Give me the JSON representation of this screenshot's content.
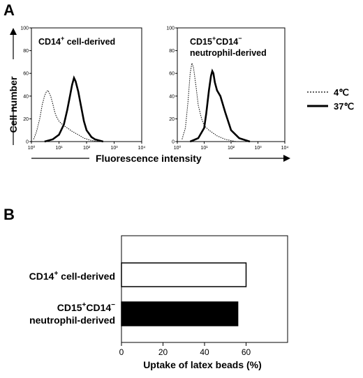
{
  "panel_a": {
    "letter": "A",
    "y_axis_title": "Cell number",
    "x_axis_title": "Fluorescence intensity",
    "legend": [
      {
        "label": "4℃",
        "style": "dotted"
      },
      {
        "label": "37℃",
        "style": "solid"
      }
    ]
  },
  "panel_b": {
    "letter": "B"
  },
  "chart_data": [
    {
      "type": "line",
      "panel": "A-left",
      "label_main": "CD14",
      "label_sup": "+",
      "label_rest": " cell-derived",
      "x_scale": "log",
      "xlim": [
        1,
        10000
      ],
      "ylim": [
        0,
        100
      ],
      "x_ticks": [
        "10⁰",
        "10¹",
        "10²",
        "10³",
        "10⁴"
      ],
      "y_ticks": [
        "0",
        "20",
        "40",
        "60",
        "80",
        "100"
      ],
      "series": [
        {
          "style": "dotted",
          "x": [
            1.2,
            1.5,
            2,
            2.5,
            3,
            3.5,
            4,
            5,
            6,
            7,
            8,
            10,
            12,
            15,
            20,
            30,
            50,
            80,
            150,
            300
          ],
          "y": [
            2,
            8,
            20,
            33,
            40,
            44,
            45,
            40,
            33,
            26,
            22,
            18,
            16,
            14,
            12,
            9,
            6,
            3,
            1,
            0
          ]
        },
        {
          "style": "solid",
          "x": [
            3,
            6,
            10,
            15,
            20,
            25,
            30,
            35,
            40,
            50,
            60,
            80,
            100,
            150,
            200,
            400
          ],
          "y": [
            0,
            2,
            6,
            15,
            28,
            40,
            50,
            56,
            53,
            44,
            34,
            18,
            10,
            4,
            2,
            0
          ]
        }
      ]
    },
    {
      "type": "line",
      "panel": "A-right",
      "label_main": "CD15",
      "label_sup": "+",
      "label_mid": "CD14",
      "label_sup2": "−",
      "label_line2": "neutrophil-derived",
      "x_scale": "log",
      "xlim": [
        1,
        10000
      ],
      "ylim": [
        0,
        100
      ],
      "x_ticks": [
        "10⁰",
        "10¹",
        "10²",
        "10³",
        "10⁴"
      ],
      "y_ticks": [
        "0",
        "20",
        "40",
        "60",
        "80",
        "100"
      ],
      "series": [
        {
          "style": "dotted",
          "x": [
            1.5,
            2,
            2.5,
            3,
            3.5,
            4,
            5,
            6,
            8,
            10,
            15,
            20,
            30,
            60,
            150
          ],
          "y": [
            2,
            12,
            35,
            60,
            69,
            65,
            48,
            32,
            20,
            14,
            10,
            8,
            5,
            2,
            0
          ]
        },
        {
          "style": "solid",
          "x": [
            3,
            6,
            10,
            12,
            15,
            18,
            20,
            22,
            25,
            30,
            40,
            60,
            100,
            200,
            500
          ],
          "y": [
            0,
            3,
            12,
            25,
            45,
            58,
            62,
            60,
            52,
            45,
            40,
            26,
            10,
            3,
            0
          ]
        }
      ]
    },
    {
      "type": "bar",
      "panel": "B",
      "orientation": "horizontal",
      "categories": [
        {
          "main": "CD14",
          "sup": "+",
          "rest": " cell-derived",
          "line2": ""
        },
        {
          "main": "CD15",
          "sup": "+",
          "rest": "CD14",
          "sup2": "−",
          "line2": "neutrophil-derived"
        }
      ],
      "values": [
        60,
        56
      ],
      "fills": [
        "#ffffff",
        "#000000"
      ],
      "xlabel": "Uptake of latex beads (%)",
      "xlim": [
        0,
        80
      ],
      "x_ticks": [
        0,
        20,
        40,
        60
      ]
    }
  ]
}
